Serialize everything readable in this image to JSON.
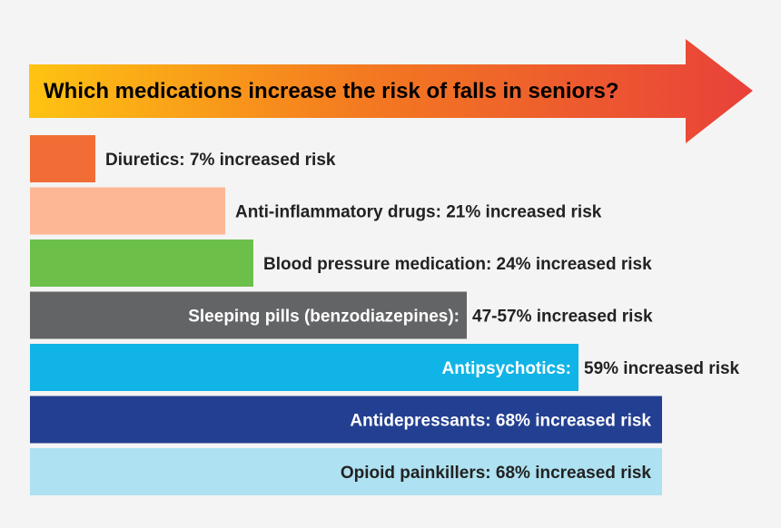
{
  "chart_data": {
    "type": "bar",
    "orientation": "horizontal",
    "title": "Which medications increase the risk of falls in seniors?",
    "value_unit": "% increased risk",
    "bars": [
      {
        "name": "Diuretics",
        "value": 7,
        "value_label": "7% increased risk",
        "color": "#f16d35",
        "label_color": "#222222",
        "label_placement": "outside"
      },
      {
        "name": "Anti-inflammatory drugs",
        "value": 21,
        "value_label": "21% increased risk",
        "color": "#fdb794",
        "label_color": "#222222",
        "label_placement": "outside"
      },
      {
        "name": "Blood pressure medication",
        "value": 24,
        "value_label": "24% increased risk",
        "color": "#6cc04a",
        "label_color": "#222222",
        "label_placement": "outside"
      },
      {
        "name": "Sleeping pills (benzodiazepines)",
        "value": 47,
        "value_high": 57,
        "value_label": "47-57% increased risk",
        "color": "#636466",
        "label_color": "#ffffff",
        "label_placement": "split"
      },
      {
        "name": "Antipsychotics",
        "value": 59,
        "value_label": "59% increased risk",
        "color": "#11b4e6",
        "label_color": "#ffffff",
        "label_placement": "split"
      },
      {
        "name": "Antidepressants",
        "value": 68,
        "value_label": "68% increased risk",
        "color": "#233f91",
        "label_color": "#ffffff",
        "label_placement": "inside"
      },
      {
        "name": "Opioid painkillers",
        "value": 68,
        "value_label": "68% increased risk",
        "color": "#aee1f1",
        "label_color": "#222222",
        "label_placement": "inside"
      }
    ],
    "header_arrow_gradient": [
      "#ffc312",
      "#f47b20",
      "#e8413a"
    ]
  }
}
